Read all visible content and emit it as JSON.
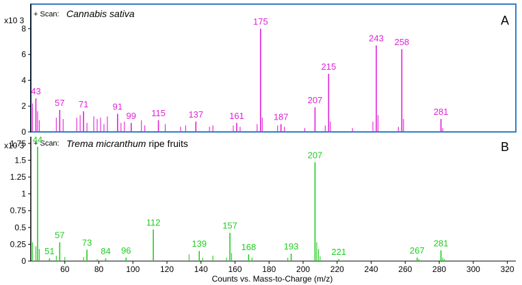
{
  "figure": {
    "xlabel": "Counts vs. Mass-to-Charge (m/z)",
    "colors": {
      "panel_a": "#e020d8",
      "panel_b": "#22cc22",
      "frame": "#2f7fc8",
      "axis": "#000000"
    }
  },
  "chart_data": [
    {
      "type": "bar",
      "panel_label": "A",
      "scan_prefix": "+ Scan:",
      "scan_title": "Cannabis sativa",
      "scan_title_rest": "",
      "y_scale_label": "x10 3",
      "xlim": [
        40,
        325
      ],
      "ylim": [
        0,
        9
      ],
      "yticks": [
        0,
        2,
        4,
        6,
        8
      ],
      "ytick_labels": [
        "0",
        "2",
        "4",
        "6",
        "8"
      ],
      "peaks": [
        {
          "mz": 43,
          "intensity": 2.6,
          "label": "43"
        },
        {
          "mz": 57,
          "intensity": 1.7,
          "label": "57"
        },
        {
          "mz": 71,
          "intensity": 1.6,
          "label": "71"
        },
        {
          "mz": 91,
          "intensity": 1.4,
          "label": "91"
        },
        {
          "mz": 99,
          "intensity": 0.7,
          "label": "99"
        },
        {
          "mz": 115,
          "intensity": 0.9,
          "label": "115"
        },
        {
          "mz": 137,
          "intensity": 0.8,
          "label": "137"
        },
        {
          "mz": 161,
          "intensity": 0.7,
          "label": "161"
        },
        {
          "mz": 175,
          "intensity": 8.0,
          "label": "175"
        },
        {
          "mz": 187,
          "intensity": 0.6,
          "label": "187"
        },
        {
          "mz": 207,
          "intensity": 1.9,
          "label": "207"
        },
        {
          "mz": 215,
          "intensity": 4.5,
          "label": "215"
        },
        {
          "mz": 243,
          "intensity": 6.7,
          "label": "243"
        },
        {
          "mz": 258,
          "intensity": 6.4,
          "label": "258"
        },
        {
          "mz": 281,
          "intensity": 1.0,
          "label": "281"
        },
        {
          "mz": 41,
          "intensity": 2.2,
          "label": ""
        },
        {
          "mz": 44,
          "intensity": 1.6,
          "label": ""
        },
        {
          "mz": 45,
          "intensity": 0.9,
          "label": ""
        },
        {
          "mz": 55,
          "intensity": 1.1,
          "label": ""
        },
        {
          "mz": 59,
          "intensity": 1.0,
          "label": ""
        },
        {
          "mz": 67,
          "intensity": 1.1,
          "label": ""
        },
        {
          "mz": 69,
          "intensity": 1.3,
          "label": ""
        },
        {
          "mz": 73,
          "intensity": 0.7,
          "label": ""
        },
        {
          "mz": 77,
          "intensity": 1.2,
          "label": ""
        },
        {
          "mz": 79,
          "intensity": 1.0,
          "label": ""
        },
        {
          "mz": 81,
          "intensity": 1.1,
          "label": ""
        },
        {
          "mz": 83,
          "intensity": 0.6,
          "label": ""
        },
        {
          "mz": 85,
          "intensity": 1.2,
          "label": ""
        },
        {
          "mz": 93,
          "intensity": 0.7,
          "label": ""
        },
        {
          "mz": 95,
          "intensity": 0.8,
          "label": ""
        },
        {
          "mz": 105,
          "intensity": 0.9,
          "label": ""
        },
        {
          "mz": 107,
          "intensity": 0.5,
          "label": ""
        },
        {
          "mz": 119,
          "intensity": 0.6,
          "label": ""
        },
        {
          "mz": 128,
          "intensity": 0.4,
          "label": ""
        },
        {
          "mz": 131,
          "intensity": 0.5,
          "label": ""
        },
        {
          "mz": 145,
          "intensity": 0.4,
          "label": ""
        },
        {
          "mz": 147,
          "intensity": 0.5,
          "label": ""
        },
        {
          "mz": 159,
          "intensity": 0.5,
          "label": ""
        },
        {
          "mz": 163,
          "intensity": 0.4,
          "label": ""
        },
        {
          "mz": 173,
          "intensity": 0.6,
          "label": ""
        },
        {
          "mz": 176,
          "intensity": 1.1,
          "label": ""
        },
        {
          "mz": 185,
          "intensity": 0.5,
          "label": ""
        },
        {
          "mz": 189,
          "intensity": 0.4,
          "label": ""
        },
        {
          "mz": 201,
          "intensity": 0.3,
          "label": ""
        },
        {
          "mz": 213,
          "intensity": 0.5,
          "label": ""
        },
        {
          "mz": 216,
          "intensity": 0.8,
          "label": ""
        },
        {
          "mz": 229,
          "intensity": 0.3,
          "label": ""
        },
        {
          "mz": 241,
          "intensity": 0.8,
          "label": ""
        },
        {
          "mz": 244,
          "intensity": 1.3,
          "label": ""
        },
        {
          "mz": 256,
          "intensity": 0.4,
          "label": ""
        },
        {
          "mz": 259,
          "intensity": 1.0,
          "label": ""
        },
        {
          "mz": 282,
          "intensity": 0.3,
          "label": ""
        }
      ]
    },
    {
      "type": "bar",
      "panel_label": "B",
      "scan_prefix": "+ Scan:",
      "scan_title": "Trema micranthum",
      "scan_title_rest": " ripe fruits",
      "y_scale_label": "x10 3",
      "xlim": [
        40,
        325
      ],
      "ylim": [
        0,
        1.85
      ],
      "yticks": [
        0,
        0.25,
        0.5,
        0.75,
        1,
        1.25,
        1.5,
        1.75
      ],
      "ytick_labels": [
        "0",
        "0.25",
        "0.5",
        "0.75",
        "1",
        "1.25",
        "1.5",
        "1.75"
      ],
      "xticks": [
        60,
        80,
        100,
        120,
        140,
        160,
        180,
        200,
        220,
        240,
        260,
        280,
        300,
        320
      ],
      "peaks": [
        {
          "mz": 44,
          "intensity": 1.7,
          "label": "44"
        },
        {
          "mz": 51,
          "intensity": 0.04,
          "label": "51"
        },
        {
          "mz": 57,
          "intensity": 0.28,
          "label": "57"
        },
        {
          "mz": 73,
          "intensity": 0.17,
          "label": "73"
        },
        {
          "mz": 84,
          "intensity": 0.04,
          "label": "84"
        },
        {
          "mz": 96,
          "intensity": 0.05,
          "label": "96"
        },
        {
          "mz": 112,
          "intensity": 0.47,
          "label": "112"
        },
        {
          "mz": 139,
          "intensity": 0.15,
          "label": "139"
        },
        {
          "mz": 157,
          "intensity": 0.42,
          "label": "157"
        },
        {
          "mz": 168,
          "intensity": 0.1,
          "label": "168"
        },
        {
          "mz": 193,
          "intensity": 0.11,
          "label": "193"
        },
        {
          "mz": 207,
          "intensity": 1.47,
          "label": "207"
        },
        {
          "mz": 221,
          "intensity": 0.03,
          "label": "221"
        },
        {
          "mz": 267,
          "intensity": 0.05,
          "label": "267"
        },
        {
          "mz": 281,
          "intensity": 0.16,
          "label": "281"
        },
        {
          "mz": 41,
          "intensity": 0.28,
          "label": ""
        },
        {
          "mz": 43,
          "intensity": 0.22,
          "label": ""
        },
        {
          "mz": 45,
          "intensity": 0.18,
          "label": ""
        },
        {
          "mz": 55,
          "intensity": 0.08,
          "label": ""
        },
        {
          "mz": 60,
          "intensity": 0.06,
          "label": ""
        },
        {
          "mz": 71,
          "intensity": 0.06,
          "label": ""
        },
        {
          "mz": 79,
          "intensity": 0.03,
          "label": ""
        },
        {
          "mz": 133,
          "intensity": 0.1,
          "label": ""
        },
        {
          "mz": 141,
          "intensity": 0.05,
          "label": ""
        },
        {
          "mz": 147,
          "intensity": 0.08,
          "label": ""
        },
        {
          "mz": 155,
          "intensity": 0.05,
          "label": ""
        },
        {
          "mz": 158,
          "intensity": 0.12,
          "label": ""
        },
        {
          "mz": 170,
          "intensity": 0.05,
          "label": ""
        },
        {
          "mz": 191,
          "intensity": 0.05,
          "label": ""
        },
        {
          "mz": 208,
          "intensity": 0.28,
          "label": ""
        },
        {
          "mz": 209,
          "intensity": 0.18,
          "label": ""
        },
        {
          "mz": 210,
          "intensity": 0.07,
          "label": ""
        },
        {
          "mz": 268,
          "intensity": 0.03,
          "label": ""
        },
        {
          "mz": 282,
          "intensity": 0.05,
          "label": ""
        },
        {
          "mz": 283,
          "intensity": 0.03,
          "label": ""
        }
      ]
    }
  ]
}
